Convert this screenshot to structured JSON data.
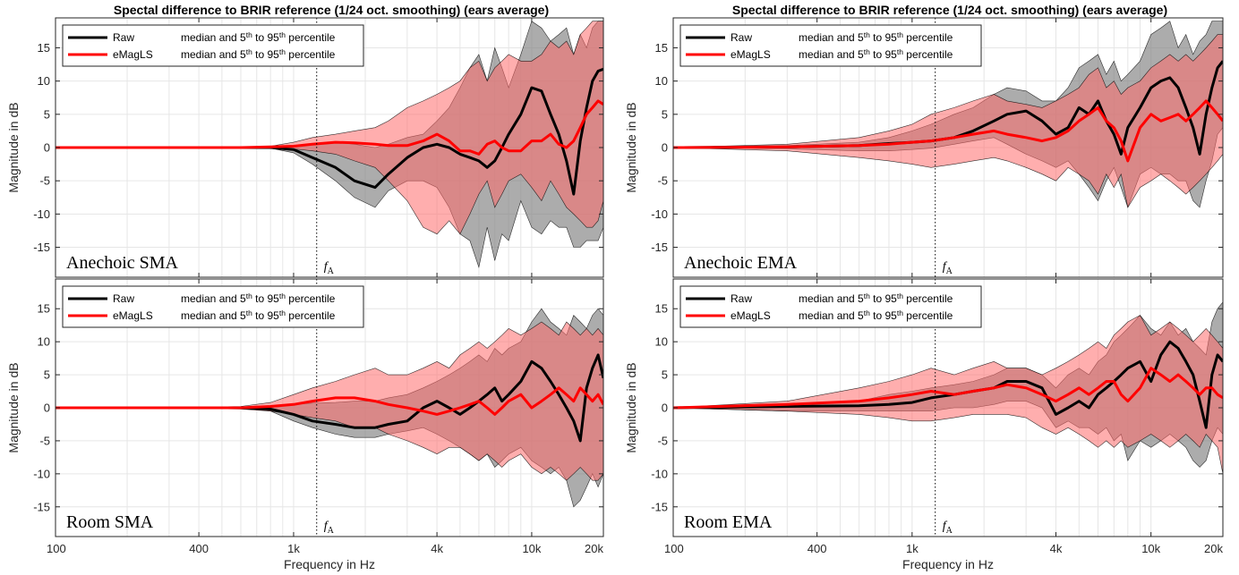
{
  "figure": {
    "xlabel": "Frequency in Hz",
    "ylabel": "Magnitude in dB",
    "xticks": [
      100,
      400,
      1000,
      4000,
      10000,
      20000
    ],
    "xtick_labels": [
      "100",
      "400",
      "1k",
      "4k",
      "10k",
      "20k"
    ],
    "yticks": [
      -15,
      -10,
      -5,
      0,
      5,
      10,
      15
    ],
    "ytick_labels": [
      "-15",
      "-10",
      "-5",
      "0",
      "5",
      "10",
      "15"
    ],
    "fA_label": "f",
    "fA_sub": "A",
    "legend": [
      {
        "name": "Raw",
        "desc": "median and 5",
        "sup1": "th",
        "mid": " to 95",
        "sup2": "th",
        "end": " percentile",
        "color": "#000000"
      },
      {
        "name": "eMagLS",
        "desc": "median and 5",
        "sup1": "th",
        "mid": " to 95",
        "sup2": "th",
        "end": " percentile",
        "color": "#ff0000"
      }
    ],
    "colors": {
      "raw_line": "#000000",
      "emagls_line": "#ff0000",
      "raw_band": "#7f7f7f",
      "emagls_band": "#ff6b6b",
      "grid": "#e6e6e6"
    }
  },
  "chart_data": [
    {
      "type": "area",
      "title": "Spectal difference to BRIR reference    (1/24 oct. smoothing)    (ears average)",
      "condition": "Anechoic SMA",
      "xscale": "log",
      "xlim": [
        100,
        20000
      ],
      "ylim": [
        -19.5,
        19.5
      ],
      "fA": 1250,
      "x": [
        100,
        300,
        600,
        800,
        1000,
        1200,
        1500,
        1800,
        2200,
        2500,
        3000,
        3500,
        4000,
        4500,
        5000,
        5500,
        6000,
        6500,
        7000,
        7500,
        8000,
        9000,
        10000,
        11000,
        12000,
        13000,
        14000,
        15000,
        16000,
        17000,
        18000,
        19000,
        20000
      ],
      "series": [
        {
          "name": "Raw",
          "median": [
            0,
            0,
            0,
            0,
            -0.3,
            -1.5,
            -3,
            -5,
            -6,
            -4,
            -1.5,
            0,
            0.5,
            0,
            -1,
            -1.5,
            -2,
            -3,
            -2,
            0,
            2,
            5,
            9,
            8.5,
            5,
            2,
            -2,
            -7,
            1,
            6,
            10,
            11.5,
            11.8
          ],
          "p05": [
            0,
            0,
            0,
            -0.1,
            -0.8,
            -2.5,
            -5,
            -7.5,
            -9,
            -6.5,
            -5,
            -5,
            -6,
            -9,
            -13,
            -14,
            -18,
            -12,
            -17,
            -13,
            -14,
            -8,
            -12,
            -13,
            -11,
            -12,
            -12,
            -15,
            -15,
            -14,
            -14,
            -14,
            -12
          ],
          "p95": [
            0,
            0,
            0,
            0.1,
            0.2,
            0.5,
            0.8,
            0.5,
            0,
            0.5,
            1.5,
            2,
            4,
            6,
            9,
            12,
            14,
            10,
            15,
            12,
            9,
            14,
            19,
            18,
            16,
            17,
            18,
            14,
            17,
            15,
            18,
            19,
            19
          ]
        },
        {
          "name": "eMagLS",
          "median": [
            0,
            0,
            0,
            0.1,
            0.2,
            0.5,
            0.8,
            0.7,
            0.5,
            0.3,
            0.3,
            1,
            2,
            1,
            -0.5,
            -0.5,
            -1,
            0.5,
            1,
            0,
            -0.5,
            -0.5,
            1,
            1,
            2,
            0.5,
            0,
            1,
            3,
            5,
            6,
            7,
            6.5
          ],
          "p05": [
            0,
            0,
            0,
            -0.1,
            -0.2,
            -0.5,
            -1,
            -2,
            -3,
            -5,
            -8,
            -12,
            -13,
            -11,
            -13,
            -10,
            -7,
            -5,
            -9,
            -7,
            -5,
            -4,
            -6,
            -8,
            -5,
            -7,
            -9,
            -10,
            -11,
            -12,
            -12,
            -11,
            -8
          ],
          "p95": [
            0,
            0,
            0,
            0.2,
            0.8,
            1.5,
            2,
            2.5,
            3,
            4,
            6,
            7,
            8,
            9,
            10,
            12,
            13,
            10,
            12,
            13,
            14,
            13,
            13,
            14,
            16,
            15,
            16,
            14,
            17,
            18,
            19,
            19,
            19
          ]
        }
      ]
    },
    {
      "type": "area",
      "title": "Spectal difference to BRIR reference    (1/24 oct. smoothing)    (ears average)",
      "condition": "Anechoic EMA",
      "xscale": "log",
      "xlim": [
        100,
        20000
      ],
      "ylim": [
        -19.5,
        19.5
      ],
      "fA": 1250,
      "x": [
        100,
        300,
        600,
        800,
        1000,
        1200,
        1500,
        1800,
        2200,
        2500,
        3000,
        3500,
        4000,
        4500,
        5000,
        5500,
        6000,
        6500,
        7000,
        7500,
        8000,
        9000,
        10000,
        11000,
        12000,
        13000,
        14000,
        15000,
        16000,
        17000,
        18000,
        19000,
        20000
      ],
      "series": [
        {
          "name": "Raw",
          "median": [
            0,
            0.1,
            0.3,
            0.6,
            0.8,
            1,
            1.5,
            2.5,
            4,
            5,
            5.5,
            4,
            2,
            3,
            6,
            5,
            7,
            4,
            2,
            -1,
            3,
            6,
            9,
            10,
            10.5,
            9,
            6,
            3,
            -1,
            5,
            9,
            12,
            13
          ],
          "p05": [
            0,
            -0.2,
            -0.5,
            -0.5,
            -0.3,
            -0.1,
            0.5,
            1,
            1.5,
            0.5,
            -1,
            -2,
            -3,
            -2,
            -4,
            -6,
            -8,
            -5,
            -3,
            -6,
            -9,
            -4,
            -3,
            -4,
            -4,
            -5,
            -5,
            -8,
            -9,
            -5,
            -2,
            2,
            3
          ],
          "p95": [
            0,
            0.3,
            0.8,
            1.5,
            2.5,
            3.5,
            5,
            6,
            8,
            9,
            8.5,
            7,
            7,
            9,
            12,
            13,
            14,
            11,
            13,
            10,
            11,
            13,
            17,
            18,
            19,
            15,
            17,
            14,
            16,
            17,
            19,
            19,
            19
          ]
        },
        {
          "name": "eMagLS",
          "median": [
            0,
            0.1,
            0.3,
            0.5,
            0.8,
            1,
            1.5,
            2,
            2.5,
            2,
            1.5,
            1,
            1.5,
            2.5,
            4,
            5,
            6,
            4,
            3,
            1,
            -2,
            3,
            5,
            4,
            4.5,
            5,
            4,
            5,
            6,
            7,
            6,
            5,
            4
          ],
          "p05": [
            0,
            -0.5,
            -1.5,
            -2,
            -2.5,
            -3,
            -2.5,
            -2,
            -1.5,
            -2,
            -3,
            -4,
            -5,
            -3,
            -4,
            -5,
            -7,
            -4,
            -6,
            -4,
            -9,
            -6,
            -5,
            -4,
            -5,
            -6,
            -7,
            -6,
            -5,
            -4,
            -3,
            -2,
            -1
          ],
          "p95": [
            0,
            0.5,
            1.5,
            2.5,
            3.5,
            5,
            6,
            7,
            8,
            7,
            6.5,
            6,
            7,
            8,
            9,
            11,
            12,
            9,
            10,
            8,
            9,
            10,
            12,
            13,
            14,
            13,
            14,
            13,
            14,
            15,
            16,
            17,
            17
          ]
        }
      ]
    },
    {
      "type": "area",
      "title": "",
      "condition": "Room SMA",
      "xscale": "log",
      "xlim": [
        100,
        20000
      ],
      "ylim": [
        -19.5,
        19.5
      ],
      "fA": 1250,
      "x": [
        100,
        300,
        600,
        800,
        1000,
        1200,
        1500,
        1800,
        2200,
        2500,
        3000,
        3500,
        4000,
        4500,
        5000,
        5500,
        6000,
        6500,
        7000,
        7500,
        8000,
        9000,
        10000,
        11000,
        12000,
        13000,
        14000,
        15000,
        16000,
        17000,
        18000,
        19000,
        20000
      ],
      "series": [
        {
          "name": "Raw",
          "median": [
            0,
            0,
            0,
            -0.2,
            -1,
            -2,
            -2.5,
            -3,
            -3,
            -2.5,
            -2,
            0,
            1,
            0,
            -1,
            0,
            1,
            2,
            3,
            1,
            2,
            4,
            7,
            6,
            4,
            2,
            0,
            -2,
            -5,
            3,
            6,
            8,
            4.5
          ],
          "p05": [
            0,
            0,
            0,
            -0.5,
            -2,
            -3,
            -4,
            -4.5,
            -4.5,
            -4,
            -3.5,
            -3,
            -4,
            -5,
            -6,
            -7,
            -8,
            -7,
            -9,
            -8,
            -7,
            -6,
            -8,
            -9,
            -10,
            -9,
            -11,
            -15,
            -14,
            -12,
            -10,
            -12,
            -10
          ],
          "p95": [
            0,
            0,
            0,
            0.2,
            0.5,
            0.7,
            0.8,
            1,
            1,
            1.5,
            2,
            3,
            4,
            5,
            6,
            7,
            8,
            7,
            9,
            8,
            9,
            10,
            13,
            15,
            13,
            12,
            11,
            14,
            13,
            12,
            14,
            15,
            14
          ]
        },
        {
          "name": "eMagLS",
          "median": [
            0,
            0,
            0,
            0.2,
            0.5,
            1,
            1.5,
            1.5,
            1,
            0.5,
            0,
            -0.5,
            -1,
            -0.5,
            0,
            0.5,
            1,
            0,
            -1,
            0,
            1,
            2,
            0,
            1,
            2,
            3,
            2,
            1,
            3,
            2,
            1,
            2,
            0.5
          ],
          "p05": [
            0,
            0,
            -0.2,
            -0.5,
            -1,
            -1.5,
            -2,
            -3,
            -3,
            -4,
            -5,
            -6,
            -7,
            -6,
            -6,
            -7,
            -8,
            -7,
            -8,
            -9,
            -8,
            -7,
            -9,
            -10,
            -9,
            -10,
            -11,
            -10,
            -9,
            -10,
            -11,
            -11,
            -10
          ],
          "p95": [
            0,
            0,
            0.2,
            0.8,
            2,
            3,
            4,
            5,
            6,
            5,
            5,
            6,
            7,
            6,
            8,
            9,
            10,
            9,
            10,
            11,
            12,
            11,
            12,
            13,
            12,
            11,
            13,
            12,
            11,
            12,
            11,
            12,
            11
          ]
        }
      ]
    },
    {
      "type": "area",
      "title": "",
      "condition": "Room EMA",
      "xscale": "log",
      "xlim": [
        100,
        20000
      ],
      "ylim": [
        -19.5,
        19.5
      ],
      "fA": 1250,
      "x": [
        100,
        300,
        600,
        800,
        1000,
        1200,
        1500,
        1800,
        2200,
        2500,
        3000,
        3500,
        4000,
        4500,
        5000,
        5500,
        6000,
        6500,
        7000,
        7500,
        8000,
        9000,
        10000,
        11000,
        12000,
        13000,
        14000,
        15000,
        16000,
        17000,
        18000,
        19000,
        20000
      ],
      "series": [
        {
          "name": "Raw",
          "median": [
            0,
            0.2,
            0.3,
            0.5,
            0.8,
            1.5,
            2,
            2.5,
            3,
            4,
            4,
            3,
            -1,
            0,
            1,
            0,
            2,
            3,
            4,
            5,
            6,
            7,
            4,
            8,
            10,
            9,
            7,
            5,
            1,
            -3,
            5,
            8,
            7
          ],
          "p05": [
            0,
            -0.5,
            -0.5,
            -0.5,
            -0.5,
            -0.5,
            0,
            0,
            0.5,
            1,
            1,
            0,
            -3,
            -2,
            -3,
            -3,
            -4,
            -3,
            -5,
            -4,
            -8,
            -5,
            -6,
            -5,
            -4,
            -5,
            -6,
            -8,
            -9,
            -8,
            -5,
            -3,
            -4
          ],
          "p95": [
            0,
            0.5,
            1,
            2,
            2.5,
            3,
            3.5,
            4,
            5,
            6,
            6,
            5,
            3,
            5,
            6,
            5,
            7,
            8,
            10,
            11,
            12,
            14,
            12,
            11,
            13,
            11,
            12,
            10,
            9,
            8,
            13,
            15,
            16
          ]
        },
        {
          "name": "eMagLS",
          "median": [
            0,
            0.5,
            1,
            1.5,
            2,
            2.5,
            2,
            2.5,
            3,
            3.5,
            3,
            2,
            1,
            2,
            3,
            2,
            3,
            4,
            4,
            2,
            1,
            3,
            6,
            5,
            4,
            5,
            4,
            3,
            2,
            3,
            3,
            2,
            1.5
          ],
          "p05": [
            0,
            -0.5,
            -1,
            -1.5,
            -2,
            -2,
            -1.5,
            -1,
            -1,
            -1,
            -1.5,
            -3,
            -4,
            -3,
            -4,
            -5,
            -6,
            -5,
            -6,
            -5,
            -6,
            -5,
            -4,
            -5,
            -6,
            -5,
            -4,
            -5,
            -6,
            -4,
            -5,
            -6,
            -10
          ],
          "p95": [
            0,
            1,
            3,
            4,
            5,
            6,
            5,
            6,
            7,
            6,
            6,
            5,
            6,
            7,
            8,
            9,
            10,
            9,
            11,
            12,
            13,
            14,
            11,
            12,
            13,
            12,
            11,
            10,
            11,
            12,
            11,
            10,
            9
          ]
        }
      ]
    }
  ]
}
